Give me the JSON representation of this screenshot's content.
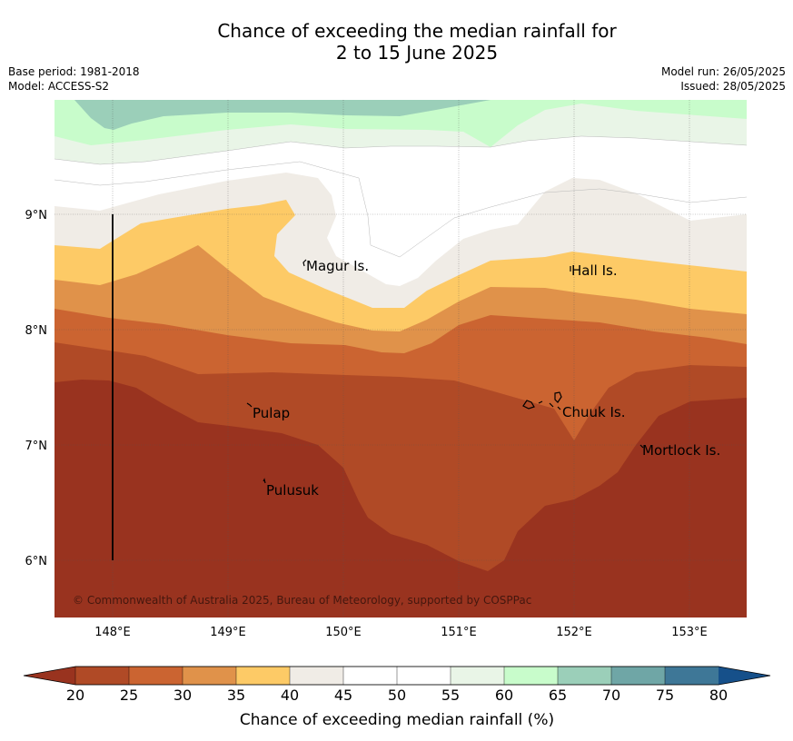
{
  "header": {
    "title_line1": "Chance of exceeding the median rainfall for",
    "title_line2": "2 to 15 June 2025",
    "base_period": "Base period: 1981-2018",
    "model": "Model: ACCESS-S2",
    "model_run": "Model run: 26/05/2025",
    "issued": "Issued: 28/05/2025"
  },
  "map": {
    "lat_ticks": [
      "9°N",
      "8°N",
      "7°N",
      "6°N"
    ],
    "lon_ticks": [
      "148°E",
      "149°E",
      "150°E",
      "151°E",
      "152°E",
      "153°E"
    ],
    "places": [
      {
        "name": "Magur Is."
      },
      {
        "name": "Hall Is."
      },
      {
        "name": "Pulap"
      },
      {
        "name": "Chuuk Is."
      },
      {
        "name": "Mortlock Is."
      },
      {
        "name": "Pulusuk"
      }
    ],
    "copyright": "© Commonwealth of Australia 2025, Bureau of Meteorology, supported by COSPPac"
  },
  "colorbar": {
    "ticks": [
      "20",
      "25",
      "30",
      "35",
      "40",
      "45",
      "50",
      "55",
      "60",
      "65",
      "70",
      "75",
      "80"
    ],
    "colors": [
      "#b04a26",
      "#cb6431",
      "#e0924a",
      "#fdca66",
      "#f0ece6",
      "#ffffff",
      "#ffffff",
      "#e9f5e7",
      "#c8fccb",
      "#9bcfb9",
      "#6fa6a6",
      "#3e7797"
    ],
    "under_color": "#99331f",
    "over_color": "#16508a",
    "label": "Chance of exceeding median rainfall (%)"
  }
}
